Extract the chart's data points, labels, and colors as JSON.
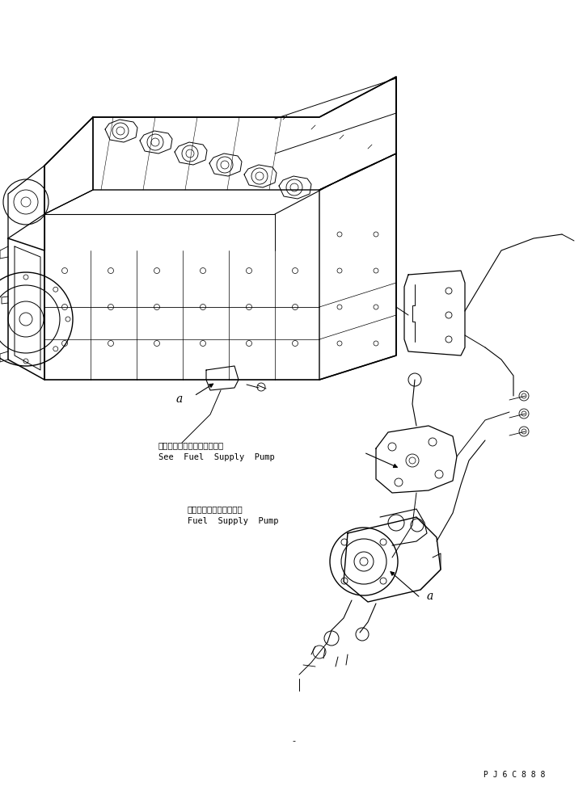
{
  "background_color": "#ffffff",
  "fig_width": 7.26,
  "fig_height": 9.84,
  "dpi": 100,
  "label1_japanese": "フェエルサプライポンプ参照",
  "label1_english": "See  Fuel  Supply  Pump",
  "label2_japanese": "フェエルサプライポンプ",
  "label2_english": "Fuel  Supply  Pump",
  "watermark": "P J 6 C 8 8 8",
  "dot_marker": "-",
  "label_a1": "a",
  "label_a2": "a",
  "text_color": "#000000",
  "line_color": "#000000",
  "font_size_japanese": 7.5,
  "font_size_english": 7.5,
  "font_size_watermark": 7,
  "font_size_a": 10
}
